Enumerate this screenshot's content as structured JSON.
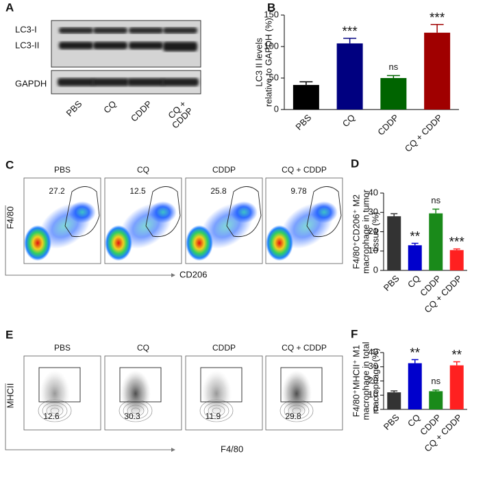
{
  "panel_labels": [
    "A",
    "B",
    "C",
    "D",
    "E",
    "F"
  ],
  "blot": {
    "bands": [
      "LC3-I",
      "LC3-II",
      "GAPDH"
    ],
    "lanes": [
      [
        "PBS"
      ],
      [
        "CQ"
      ],
      [
        "CDDP"
      ],
      [
        "CQ +",
        "CDDP"
      ]
    ]
  },
  "flow_c": {
    "samples": [
      "PBS",
      "CQ",
      "CDDP",
      "CQ + CDDP"
    ],
    "gates": [
      27.2,
      12.5,
      25.8,
      9.78
    ],
    "y_label": "F4/80",
    "x_label": "CD206"
  },
  "flow_e": {
    "samples": [
      "PBS",
      "CQ",
      "CDDP",
      "CQ + CDDP"
    ],
    "gates": [
      12.6,
      30.3,
      11.9,
      29.8
    ],
    "y_label": "MHCII",
    "x_label": "F4/80"
  },
  "chart_data": [
    {
      "type": "bar",
      "y_label": [
        "LC3 II levels",
        "relative to GAPDH (%)"
      ],
      "categories": [
        "PBS",
        "CQ",
        "CDDP",
        "CQ + CDDP"
      ],
      "values": [
        39,
        105,
        50,
        122
      ],
      "errors": [
        5,
        8,
        4,
        13
      ],
      "colors": [
        "#000000",
        "#000080",
        "#006400",
        "#a00000"
      ],
      "annotations": [
        null,
        "***",
        "ns",
        "***"
      ],
      "ylim": [
        0,
        150
      ],
      "yticks": [
        0,
        50,
        100,
        150
      ]
    },
    {
      "type": "bar",
      "y_label": [
        "F4/80⁺CD206⁺ M2",
        "macrophage in tumor",
        "tissue (%)"
      ],
      "categories": [
        "PBS",
        "CQ",
        "CDDP",
        "CQ + CDDP"
      ],
      "values": [
        28,
        13,
        29.5,
        10.5
      ],
      "errors": [
        1.3,
        1,
        2.2,
        0.6
      ],
      "colors": [
        "#333333",
        "#0000cc",
        "#1a8a1a",
        "#ff2020"
      ],
      "annotations": [
        null,
        "**",
        "ns",
        "***"
      ],
      "ylim": [
        0,
        40
      ],
      "yticks": [
        0,
        10,
        20,
        30,
        40
      ]
    },
    {
      "type": "bar",
      "y_label": [
        "F4/80⁺MHCII⁺ M1",
        "macrophage in total",
        "macrophage (%)"
      ],
      "categories": [
        "PBS",
        "CQ",
        "CDDP",
        "CQ + CDDP"
      ],
      "values": [
        12,
        32.5,
        12.8,
        31
      ],
      "errors": [
        1,
        2.5,
        0.8,
        2.5
      ],
      "colors": [
        "#333333",
        "#0000cc",
        "#1a8a1a",
        "#ff2020"
      ],
      "annotations": [
        null,
        "**",
        "ns",
        "**"
      ],
      "ylim": [
        0,
        40
      ],
      "yticks": [
        0,
        10,
        20,
        30,
        40
      ]
    }
  ]
}
